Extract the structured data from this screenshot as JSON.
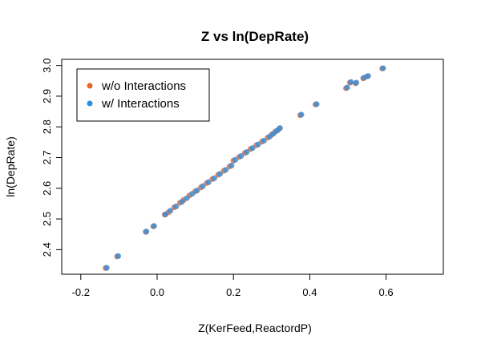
{
  "chart_data": {
    "type": "scatter",
    "title": "Z vs ln(DepRate)",
    "xlabel": "Z(KerFeed,ReactordP)",
    "ylabel": "ln(DepRate)",
    "xlim": [
      -0.25,
      0.75
    ],
    "ylim": [
      2.32,
      3.02
    ],
    "x_ticks": [
      "-0.2",
      "0.0",
      "0.2",
      "0.4",
      "0.6"
    ],
    "y_ticks": [
      "2.4",
      "2.5",
      "2.6",
      "2.7",
      "2.8",
      "2.9",
      "3.0"
    ],
    "legend_position": "top-left",
    "series": [
      {
        "name": "w/o Interactions",
        "color": "#e8622a",
        "points": [
          [
            -0.135,
            2.34
          ],
          [
            -0.105,
            2.378
          ],
          [
            -0.03,
            2.458
          ],
          [
            -0.01,
            2.476
          ],
          [
            0.02,
            2.514
          ],
          [
            0.03,
            2.522
          ],
          [
            0.045,
            2.538
          ],
          [
            0.06,
            2.553
          ],
          [
            0.07,
            2.562
          ],
          [
            0.085,
            2.577
          ],
          [
            0.1,
            2.59
          ],
          [
            0.115,
            2.603
          ],
          [
            0.13,
            2.617
          ],
          [
            0.145,
            2.63
          ],
          [
            0.16,
            2.644
          ],
          [
            0.175,
            2.657
          ],
          [
            0.19,
            2.671
          ],
          [
            0.2,
            2.69
          ],
          [
            0.215,
            2.702
          ],
          [
            0.23,
            2.715
          ],
          [
            0.245,
            2.728
          ],
          [
            0.26,
            2.74
          ],
          [
            0.275,
            2.752
          ],
          [
            0.29,
            2.765
          ],
          [
            0.3,
            2.775
          ],
          [
            0.31,
            2.785
          ],
          [
            0.32,
            2.794
          ],
          [
            0.375,
            2.838
          ],
          [
            0.415,
            2.873
          ],
          [
            0.495,
            2.926
          ],
          [
            0.505,
            2.944
          ],
          [
            0.52,
            2.942
          ],
          [
            0.54,
            2.958
          ],
          [
            0.55,
            2.964
          ],
          [
            0.59,
            2.99
          ]
        ]
      },
      {
        "name": "w/ Interactions",
        "color": "#2f8fdc",
        "points": [
          [
            -0.132,
            2.341
          ],
          [
            -0.102,
            2.379
          ],
          [
            -0.028,
            2.459
          ],
          [
            -0.008,
            2.477
          ],
          [
            0.022,
            2.515
          ],
          [
            0.035,
            2.527
          ],
          [
            0.05,
            2.541
          ],
          [
            0.065,
            2.556
          ],
          [
            0.078,
            2.568
          ],
          [
            0.092,
            2.582
          ],
          [
            0.105,
            2.593
          ],
          [
            0.12,
            2.607
          ],
          [
            0.135,
            2.62
          ],
          [
            0.15,
            2.633
          ],
          [
            0.165,
            2.647
          ],
          [
            0.18,
            2.66
          ],
          [
            0.195,
            2.674
          ],
          [
            0.205,
            2.693
          ],
          [
            0.22,
            2.705
          ],
          [
            0.235,
            2.718
          ],
          [
            0.25,
            2.731
          ],
          [
            0.265,
            2.743
          ],
          [
            0.28,
            2.755
          ],
          [
            0.295,
            2.768
          ],
          [
            0.305,
            2.778
          ],
          [
            0.315,
            2.788
          ],
          [
            0.322,
            2.796
          ],
          [
            0.378,
            2.84
          ],
          [
            0.418,
            2.874
          ],
          [
            0.498,
            2.928
          ],
          [
            0.508,
            2.946
          ],
          [
            0.522,
            2.944
          ],
          [
            0.542,
            2.96
          ],
          [
            0.553,
            2.966
          ],
          [
            0.592,
            2.991
          ]
        ]
      }
    ]
  }
}
